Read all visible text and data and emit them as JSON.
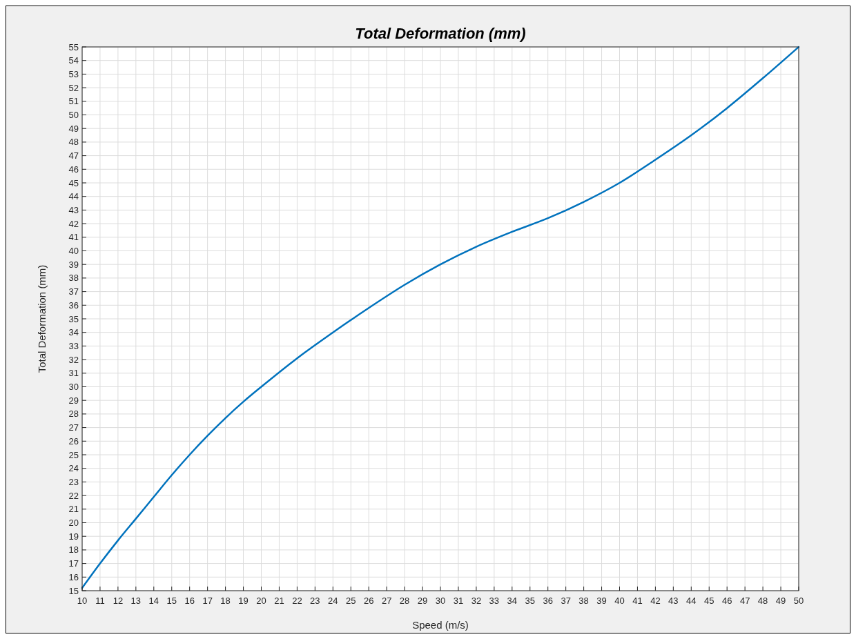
{
  "chart_data": {
    "type": "line",
    "title": "Total Deformation (mm)",
    "xlabel": "Speed (m/s)",
    "ylabel": "Total Deformation (mm)",
    "x": [
      10,
      11,
      12,
      13,
      14,
      15,
      16,
      17,
      18,
      19,
      20,
      22,
      24,
      26,
      28,
      30,
      32,
      34,
      36,
      38,
      40,
      42,
      44,
      46,
      48,
      50
    ],
    "series": [
      {
        "color": "#0072bd",
        "values": [
          15.2,
          17,
          18.7,
          20.3,
          21.9,
          23.5,
          25,
          26.4,
          27.7,
          28.9,
          30,
          32.1,
          34,
          35.8,
          37.5,
          39,
          40.3,
          41.4,
          42.4,
          43.6,
          45,
          46.7,
          48.5,
          50.5,
          52.7,
          55
        ]
      }
    ],
    "xlim": [
      10,
      50
    ],
    "ylim": [
      15,
      55
    ],
    "xticks": [
      10,
      11,
      12,
      13,
      14,
      15,
      16,
      17,
      18,
      19,
      20,
      21,
      22,
      23,
      24,
      25,
      26,
      27,
      28,
      29,
      30,
      31,
      32,
      33,
      34,
      35,
      36,
      37,
      38,
      39,
      40,
      41,
      42,
      43,
      44,
      45,
      46,
      47,
      48,
      49,
      50
    ],
    "yticks": [
      15,
      16,
      17,
      18,
      19,
      20,
      21,
      22,
      23,
      24,
      25,
      26,
      27,
      28,
      29,
      30,
      31,
      32,
      33,
      34,
      35,
      36,
      37,
      38,
      39,
      40,
      41,
      42,
      43,
      44,
      45,
      46,
      47,
      48,
      49,
      50,
      51,
      52,
      53,
      54,
      55
    ],
    "grid": true,
    "line_style": "solid",
    "marker": "none"
  }
}
